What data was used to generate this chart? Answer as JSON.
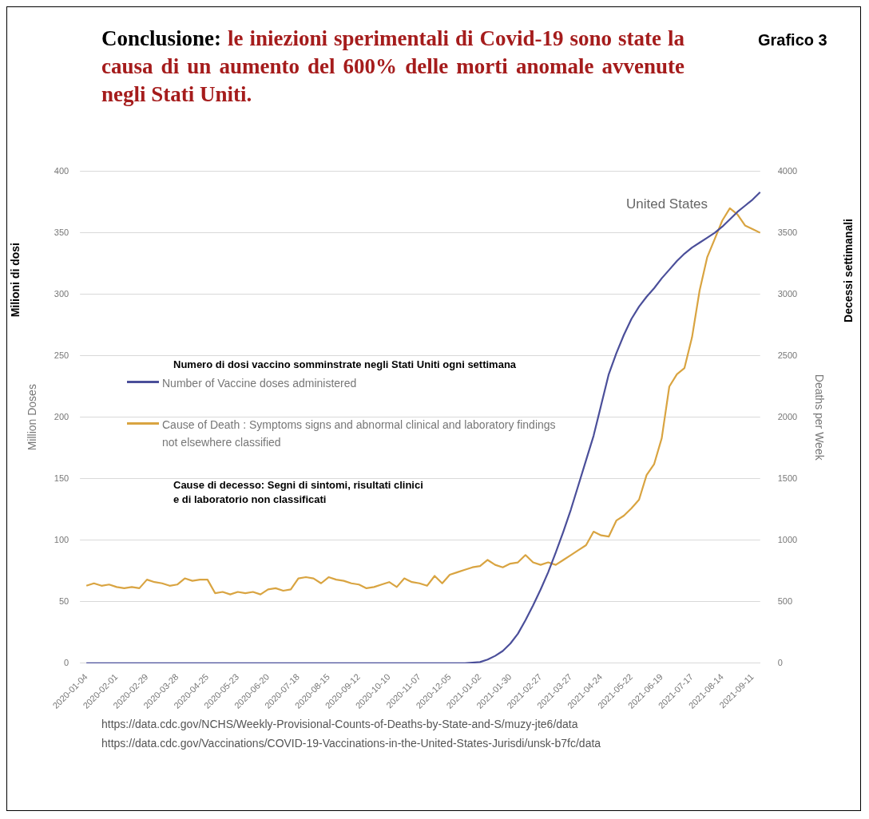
{
  "chart_data": {
    "type": "line",
    "title": "Conclusione:",
    "subtitle": "le iniezioni sperimentali di Covid-19 sono state la causa di un aumento del 600% delle morti anomale avvenute negli Stati Uniti.",
    "xlabel": null,
    "ylabel": "Million Doses",
    "y2label": "Deaths per Week",
    "categories": [
      "2020-01-04",
      null,
      null,
      null,
      "2020-02-01",
      null,
      null,
      null,
      "2020-02-29",
      null,
      null,
      null,
      "2020-03-28",
      null,
      null,
      null,
      "2020-04-25",
      null,
      null,
      null,
      "2020-05-23",
      null,
      null,
      null,
      "2020-06-20",
      null,
      null,
      null,
      "2020-07-18",
      null,
      null,
      null,
      "2020-08-15",
      null,
      null,
      null,
      "2020-09-12",
      null,
      null,
      null,
      "2020-10-10",
      null,
      null,
      null,
      "2020-11-07",
      null,
      null,
      null,
      "2020-12-05",
      null,
      null,
      null,
      "2021-01-02",
      null,
      null,
      null,
      "2021-01-30",
      null,
      null,
      null,
      "2021-02-27",
      null,
      null,
      null,
      "2021-03-27",
      null,
      null,
      null,
      "2021-04-24",
      null,
      null,
      null,
      "2021-05-22",
      null,
      null,
      null,
      "2021-06-19",
      null,
      null,
      null,
      "2021-07-17",
      null,
      null,
      null,
      "2021-08-14",
      null,
      null,
      null,
      "2021-09-11",
      null
    ],
    "series": [
      {
        "name": "Number of Vaccine doses administered",
        "color": "#4b4f9a",
        "values": [
          0,
          0,
          0,
          0,
          0,
          0,
          0,
          0,
          0,
          0,
          0,
          0,
          0,
          0,
          0,
          0,
          0,
          0,
          0,
          0,
          0,
          0,
          0,
          0,
          0,
          0,
          0,
          0,
          0,
          0,
          0,
          0,
          0,
          0,
          0,
          0,
          0,
          0,
          0,
          0,
          0,
          0,
          0,
          0,
          0,
          0,
          0,
          0,
          0,
          0,
          0,
          0.5,
          1,
          3,
          6,
          10,
          16,
          24,
          35,
          47,
          60,
          74,
          90,
          107,
          125,
          145,
          165,
          185,
          210,
          235,
          252,
          267,
          280,
          290,
          298,
          305,
          313,
          320,
          327,
          333,
          338,
          342,
          346,
          350,
          355,
          361,
          367,
          372,
          377,
          383
        ]
      },
      {
        "name": "Cause of Death : Symptoms signs and abnormal clinical and laboratory findings not elsewhere classified",
        "color": "#d9a441",
        "axis": "y2",
        "values": [
          630,
          650,
          630,
          640,
          620,
          610,
          620,
          610,
          680,
          660,
          650,
          630,
          640,
          690,
          670,
          680,
          680,
          570,
          580,
          560,
          580,
          570,
          580,
          560,
          600,
          610,
          590,
          600,
          690,
          700,
          690,
          650,
          700,
          680,
          670,
          650,
          640,
          610,
          620,
          640,
          660,
          620,
          690,
          660,
          650,
          630,
          710,
          650,
          720,
          740,
          760,
          780,
          790,
          840,
          800,
          780,
          810,
          820,
          880,
          820,
          800,
          820,
          800,
          840,
          880,
          920,
          960,
          1070,
          1040,
          1030,
          1160,
          1200,
          1260,
          1330,
          1530,
          1620,
          1830,
          2250,
          2350,
          2400,
          2650,
          3030,
          3300,
          3450,
          3600,
          3700,
          3650,
          3560,
          3530,
          3500
        ]
      }
    ],
    "ylim": [
      0,
      400
    ],
    "yticks": [
      0,
      50,
      100,
      150,
      200,
      250,
      300,
      350,
      400
    ],
    "y2lim": [
      0,
      4000
    ],
    "y2ticks": [
      0,
      500,
      1000,
      1500,
      2000,
      2500,
      3000,
      3500,
      4000
    ],
    "grid": "y",
    "legend": "left",
    "marker": "none",
    "line_style": "solid",
    "annotations": [
      "Grafico 3",
      "United States",
      "Milioni di dosi",
      "Decessi settimanali",
      "Numero di dosi vaccino somminstrate negli Stati Uniti ogni settimana",
      "Cause di decesso: Segni di sintomi, risultati clinici\ne di laboratorio non classificati",
      "https://data.cdc.gov/NCHS/Weekly-Provisional-Counts-of-Deaths-by-State-and-S/muzy-jte6/data",
      "https://data.cdc.gov/Vaccinations/COVID-19-Vaccinations-in-the-United-States-Jurisdi/unsk-b7fc/data"
    ]
  }
}
